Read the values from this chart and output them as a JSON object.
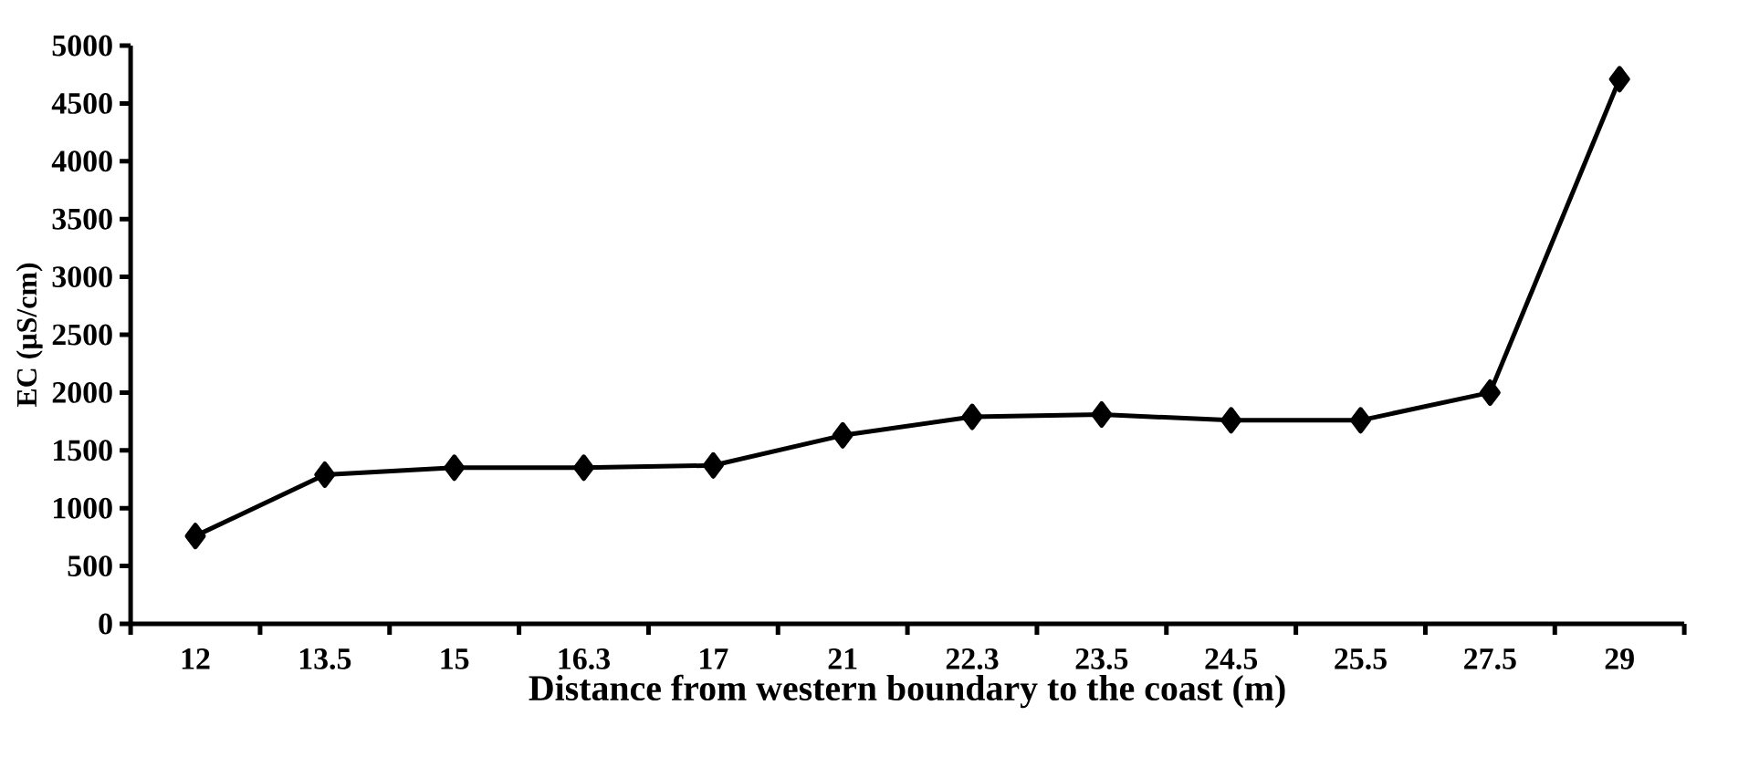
{
  "chart_data": {
    "type": "line",
    "xlabel": "Distance from western boundary to the coast (m)",
    "ylabel": "EC (µS/cm)",
    "categories": [
      "12",
      "13.5",
      "15",
      "16.3",
      "17",
      "21",
      "22.3",
      "23.5",
      "24.5",
      "25.5",
      "27.5",
      "29"
    ],
    "values": [
      760,
      1290,
      1350,
      1350,
      1370,
      1630,
      1790,
      1810,
      1760,
      1760,
      2000,
      4710
    ],
    "color": "#000000",
    "marker": "diamond",
    "ylim": [
      0,
      5000
    ],
    "yticks": [
      0,
      500,
      1000,
      1500,
      2000,
      2500,
      3000,
      3500,
      4000,
      4500,
      5000
    ]
  }
}
